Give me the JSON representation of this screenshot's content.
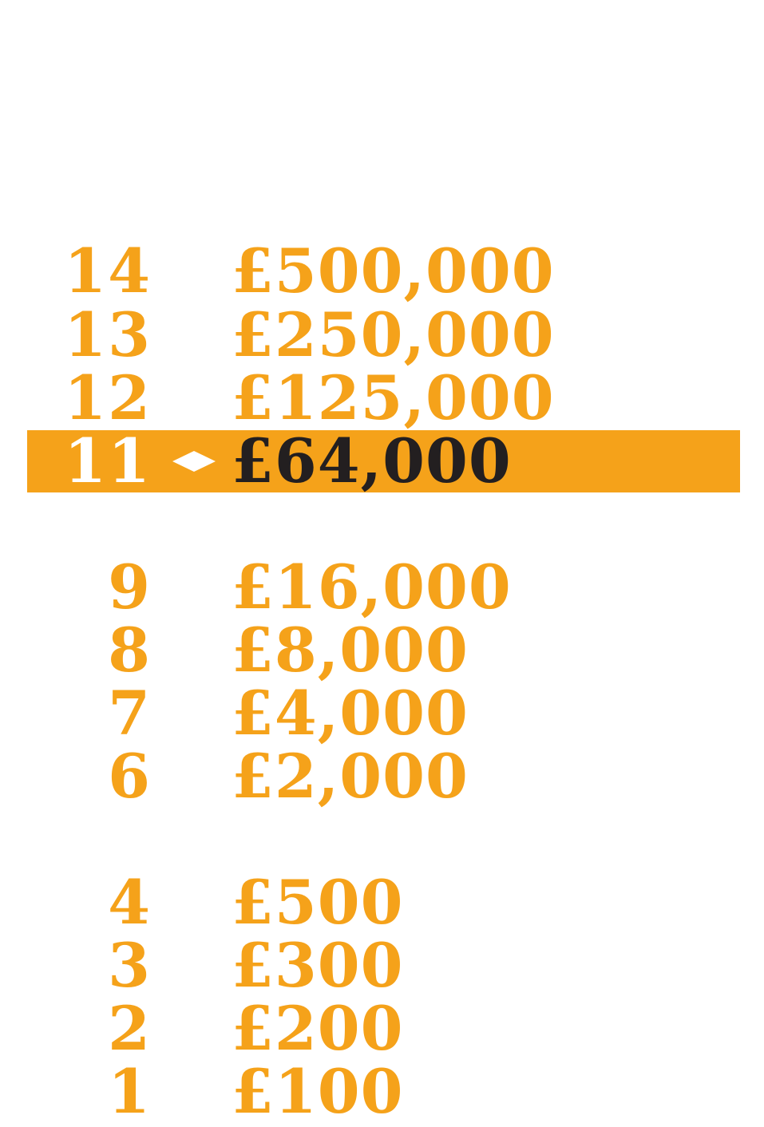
{
  "colors": {
    "accent": "#f5a21a",
    "current_text": "#231f20",
    "current_number": "#ffffff",
    "background": "#ffffff"
  },
  "ladder": {
    "rows": [
      {
        "number": "14",
        "amount": "£500,000"
      },
      {
        "number": "13",
        "amount": "£250,000"
      },
      {
        "number": "12",
        "amount": "£125,000"
      },
      {
        "number": "11",
        "amount": "£64,000",
        "current": true,
        "marker_icon": "diamond-icon"
      },
      {
        "number": "9",
        "amount": "£16,000"
      },
      {
        "number": "8",
        "amount": "£8,000"
      },
      {
        "number": "7",
        "amount": "£4,000"
      },
      {
        "number": "6",
        "amount": "£2,000"
      },
      {
        "number": "4",
        "amount": "£500"
      },
      {
        "number": "3",
        "amount": "£300"
      },
      {
        "number": "2",
        "amount": "£200"
      },
      {
        "number": "1",
        "amount": "£100"
      }
    ]
  }
}
